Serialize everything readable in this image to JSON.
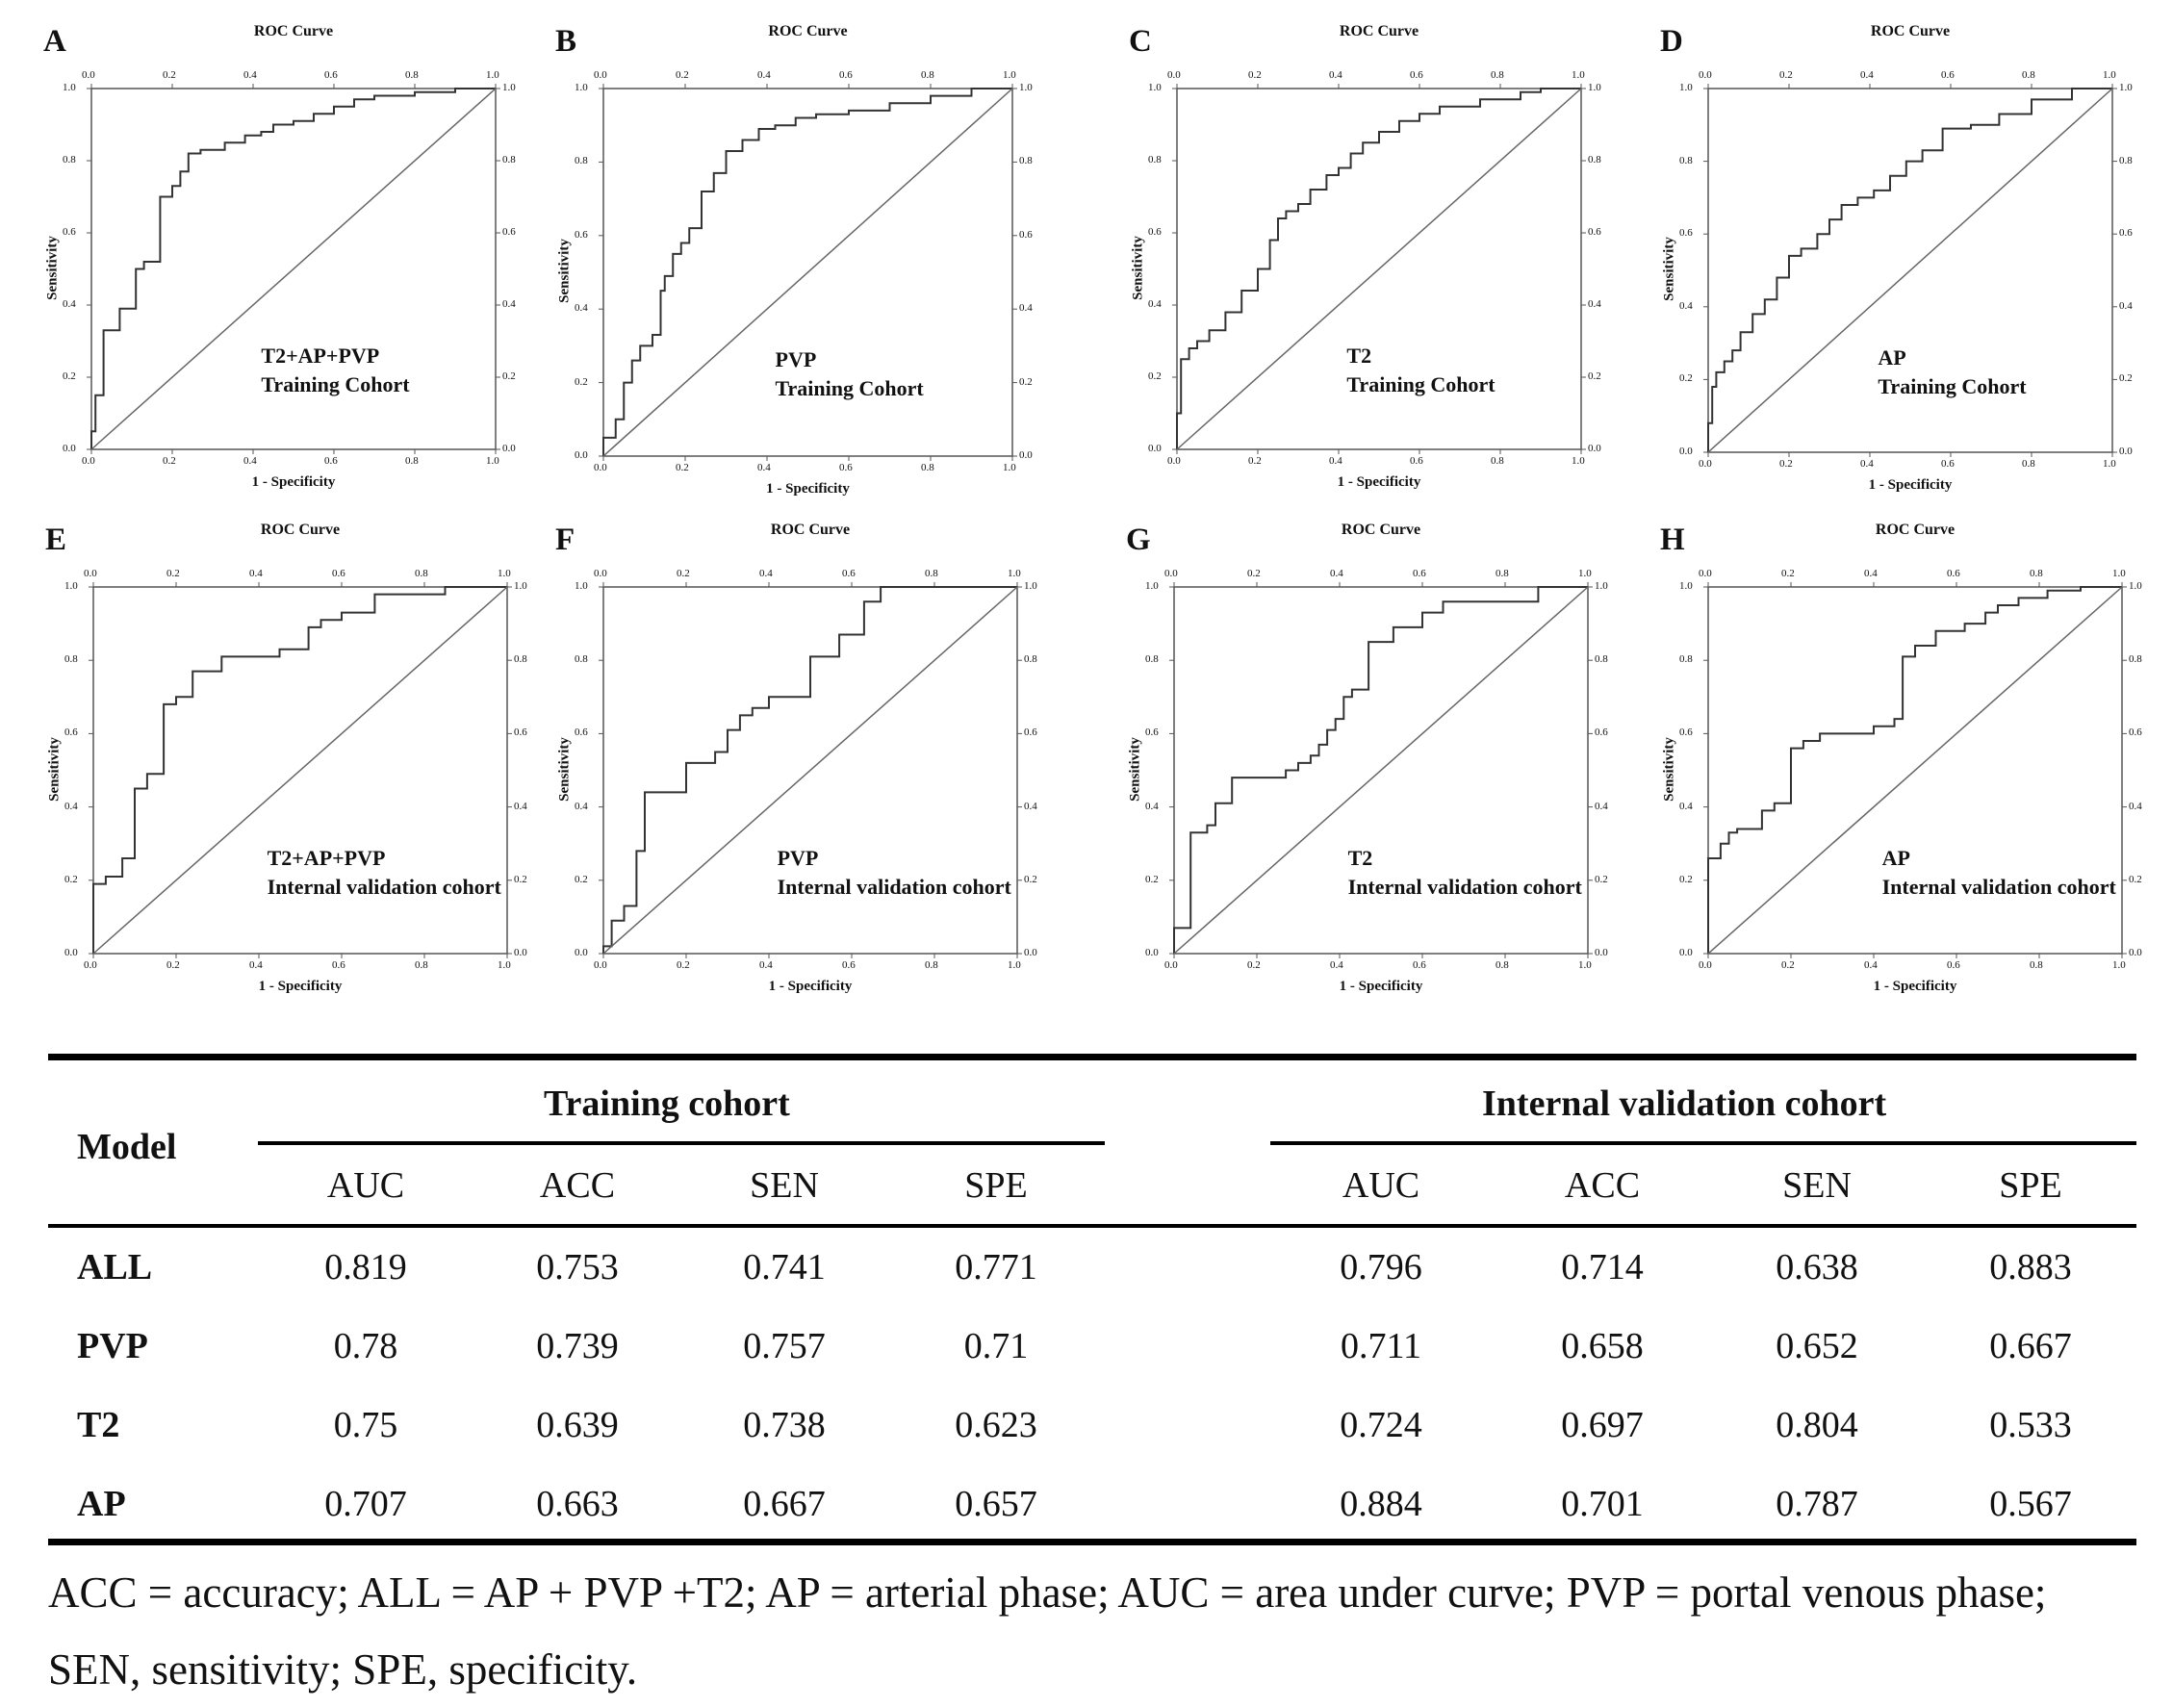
{
  "chart_data": [
    {
      "type": "line",
      "panel": "A",
      "title": "ROC Curve",
      "xlabel": "1 - Specificity",
      "ylabel": "Sensitivity",
      "xlim": [
        0,
        1
      ],
      "ylim": [
        0,
        1
      ],
      "ticks": [
        "0.0",
        "0.2",
        "0.4",
        "0.6",
        "0.8",
        "1.0"
      ],
      "annotation": [
        "T2+AP+PVP",
        "Training Cohort"
      ],
      "series": [
        {
          "curve": "roc",
          "x": [
            0,
            0,
            0.01,
            0.01,
            0.03,
            0.03,
            0.07,
            0.07,
            0.11,
            0.11,
            0.13,
            0.13,
            0.17,
            0.17,
            0.2,
            0.2,
            0.22,
            0.22,
            0.24,
            0.24,
            0.27,
            0.27,
            0.33,
            0.33,
            0.38,
            0.38,
            0.42,
            0.42,
            0.45,
            0.45,
            0.5,
            0.5,
            0.55,
            0.55,
            0.6,
            0.6,
            0.65,
            0.65,
            0.7,
            0.7,
            0.8,
            0.8,
            0.9,
            0.9,
            1
          ],
          "y": [
            0,
            0.05,
            0.05,
            0.15,
            0.15,
            0.33,
            0.33,
            0.39,
            0.39,
            0.5,
            0.5,
            0.52,
            0.52,
            0.7,
            0.7,
            0.73,
            0.73,
            0.77,
            0.77,
            0.82,
            0.82,
            0.83,
            0.83,
            0.85,
            0.85,
            0.87,
            0.87,
            0.88,
            0.88,
            0.9,
            0.9,
            0.91,
            0.91,
            0.93,
            0.93,
            0.95,
            0.95,
            0.97,
            0.97,
            0.98,
            0.98,
            0.99,
            0.99,
            1,
            1
          ]
        },
        {
          "curve": "reference",
          "x": [
            0,
            1
          ],
          "y": [
            0,
            1
          ]
        }
      ]
    },
    {
      "type": "line",
      "panel": "B",
      "title": "ROC Curve",
      "xlabel": "1 - Specificity",
      "ylabel": "Sensitivity",
      "xlim": [
        0,
        1
      ],
      "ylim": [
        0,
        1
      ],
      "ticks": [
        "0.0",
        "0.2",
        "0.4",
        "0.6",
        "0.8",
        "1.0"
      ],
      "annotation": [
        "PVP",
        "Training Cohort"
      ],
      "series": [
        {
          "curve": "roc",
          "x": [
            0,
            0,
            0.03,
            0.03,
            0.05,
            0.05,
            0.07,
            0.07,
            0.09,
            0.09,
            0.12,
            0.12,
            0.14,
            0.14,
            0.15,
            0.15,
            0.17,
            0.17,
            0.19,
            0.19,
            0.21,
            0.21,
            0.24,
            0.24,
            0.27,
            0.27,
            0.3,
            0.3,
            0.34,
            0.34,
            0.38,
            0.38,
            0.42,
            0.42,
            0.47,
            0.47,
            0.52,
            0.52,
            0.6,
            0.6,
            0.7,
            0.7,
            0.8,
            0.8,
            0.9,
            0.9,
            1
          ],
          "y": [
            0,
            0.05,
            0.05,
            0.1,
            0.1,
            0.2,
            0.2,
            0.26,
            0.26,
            0.3,
            0.3,
            0.33,
            0.33,
            0.45,
            0.45,
            0.49,
            0.49,
            0.55,
            0.55,
            0.58,
            0.58,
            0.62,
            0.62,
            0.72,
            0.72,
            0.77,
            0.77,
            0.83,
            0.83,
            0.86,
            0.86,
            0.89,
            0.89,
            0.9,
            0.9,
            0.92,
            0.92,
            0.93,
            0.93,
            0.94,
            0.94,
            0.96,
            0.96,
            0.98,
            0.98,
            1,
            1
          ]
        },
        {
          "curve": "reference",
          "x": [
            0,
            1
          ],
          "y": [
            0,
            1
          ]
        }
      ]
    },
    {
      "type": "line",
      "panel": "C",
      "title": "ROC Curve",
      "xlabel": "1 - Specificity",
      "ylabel": "Sensitivity",
      "xlim": [
        0,
        1
      ],
      "ylim": [
        0,
        1
      ],
      "ticks": [
        "0.0",
        "0.2",
        "0.4",
        "0.6",
        "0.8",
        "1.0"
      ],
      "annotation": [
        "T2",
        "Training Cohort"
      ],
      "series": [
        {
          "curve": "roc",
          "x": [
            0,
            0,
            0.01,
            0.01,
            0.03,
            0.03,
            0.05,
            0.05,
            0.08,
            0.08,
            0.12,
            0.12,
            0.16,
            0.16,
            0.2,
            0.2,
            0.23,
            0.23,
            0.25,
            0.25,
            0.27,
            0.27,
            0.3,
            0.3,
            0.33,
            0.33,
            0.37,
            0.37,
            0.4,
            0.4,
            0.43,
            0.43,
            0.46,
            0.46,
            0.5,
            0.5,
            0.55,
            0.55,
            0.6,
            0.6,
            0.65,
            0.65,
            0.75,
            0.75,
            0.85,
            0.85,
            0.9,
            0.9,
            1
          ],
          "y": [
            0,
            0.1,
            0.1,
            0.25,
            0.25,
            0.28,
            0.28,
            0.3,
            0.3,
            0.33,
            0.33,
            0.38,
            0.38,
            0.44,
            0.44,
            0.5,
            0.5,
            0.58,
            0.58,
            0.64,
            0.64,
            0.66,
            0.66,
            0.68,
            0.68,
            0.72,
            0.72,
            0.76,
            0.76,
            0.78,
            0.78,
            0.82,
            0.82,
            0.85,
            0.85,
            0.88,
            0.88,
            0.91,
            0.91,
            0.93,
            0.93,
            0.95,
            0.95,
            0.97,
            0.97,
            0.99,
            0.99,
            1,
            1
          ]
        },
        {
          "curve": "reference",
          "x": [
            0,
            1
          ],
          "y": [
            0,
            1
          ]
        }
      ]
    },
    {
      "type": "line",
      "panel": "D",
      "title": "ROC Curve",
      "xlabel": "1 - Specificity",
      "ylabel": "Sensitivity",
      "xlim": [
        0,
        1
      ],
      "ylim": [
        0,
        1
      ],
      "ticks": [
        "0.0",
        "0.2",
        "0.4",
        "0.6",
        "0.8",
        "1.0"
      ],
      "annotation": [
        "AP",
        "Training Cohort"
      ],
      "series": [
        {
          "curve": "roc",
          "x": [
            0,
            0,
            0.01,
            0.01,
            0.02,
            0.02,
            0.04,
            0.04,
            0.06,
            0.06,
            0.08,
            0.08,
            0.11,
            0.11,
            0.14,
            0.14,
            0.17,
            0.17,
            0.2,
            0.2,
            0.23,
            0.23,
            0.27,
            0.27,
            0.3,
            0.3,
            0.33,
            0.33,
            0.37,
            0.37,
            0.41,
            0.41,
            0.45,
            0.45,
            0.49,
            0.49,
            0.53,
            0.53,
            0.58,
            0.58,
            0.65,
            0.65,
            0.72,
            0.72,
            0.8,
            0.8,
            0.9,
            0.9,
            1
          ],
          "y": [
            0,
            0.08,
            0.08,
            0.18,
            0.18,
            0.22,
            0.22,
            0.25,
            0.25,
            0.28,
            0.28,
            0.33,
            0.33,
            0.38,
            0.38,
            0.42,
            0.42,
            0.48,
            0.48,
            0.54,
            0.54,
            0.56,
            0.56,
            0.6,
            0.6,
            0.64,
            0.64,
            0.68,
            0.68,
            0.7,
            0.7,
            0.72,
            0.72,
            0.76,
            0.76,
            0.8,
            0.8,
            0.83,
            0.83,
            0.89,
            0.89,
            0.9,
            0.9,
            0.93,
            0.93,
            0.97,
            0.97,
            1,
            1
          ]
        },
        {
          "curve": "reference",
          "x": [
            0,
            1
          ],
          "y": [
            0,
            1
          ]
        }
      ]
    },
    {
      "type": "line",
      "panel": "E",
      "title": "ROC Curve",
      "xlabel": "1 - Specificity",
      "ylabel": "Sensitivity",
      "xlim": [
        0,
        1
      ],
      "ylim": [
        0,
        1
      ],
      "ticks": [
        "0.0",
        "0.2",
        "0.4",
        "0.6",
        "0.8",
        "1.0"
      ],
      "annotation": [
        "T2+AP+PVP",
        "Internal validation cohort"
      ],
      "series": [
        {
          "curve": "roc",
          "x": [
            0,
            0,
            0.03,
            0.03,
            0.07,
            0.07,
            0.1,
            0.1,
            0.13,
            0.13,
            0.17,
            0.17,
            0.2,
            0.2,
            0.24,
            0.24,
            0.31,
            0.31,
            0.45,
            0.45,
            0.52,
            0.52,
            0.55,
            0.55,
            0.6,
            0.6,
            0.68,
            0.68,
            0.85,
            0.85,
            1
          ],
          "y": [
            0,
            0.19,
            0.19,
            0.21,
            0.21,
            0.26,
            0.26,
            0.45,
            0.45,
            0.49,
            0.49,
            0.68,
            0.68,
            0.7,
            0.7,
            0.77,
            0.77,
            0.81,
            0.81,
            0.83,
            0.83,
            0.89,
            0.89,
            0.91,
            0.91,
            0.93,
            0.93,
            0.98,
            0.98,
            1,
            1
          ]
        },
        {
          "curve": "reference",
          "x": [
            0,
            1
          ],
          "y": [
            0,
            1
          ]
        }
      ]
    },
    {
      "type": "line",
      "panel": "F",
      "title": "ROC Curve",
      "xlabel": "1 - Specificity",
      "ylabel": "Sensitivity",
      "xlim": [
        0,
        1
      ],
      "ylim": [
        0,
        1
      ],
      "ticks": [
        "0.0",
        "0.2",
        "0.4",
        "0.6",
        "0.8",
        "1.0"
      ],
      "annotation": [
        "PVP",
        "Internal validation cohort"
      ],
      "series": [
        {
          "curve": "roc",
          "x": [
            0,
            0,
            0.02,
            0.02,
            0.05,
            0.05,
            0.08,
            0.08,
            0.1,
            0.1,
            0.13,
            0.13,
            0.2,
            0.2,
            0.27,
            0.27,
            0.3,
            0.3,
            0.33,
            0.33,
            0.36,
            0.36,
            0.4,
            0.4,
            0.5,
            0.5,
            0.57,
            0.57,
            0.63,
            0.63,
            0.67,
            0.67,
            1
          ],
          "y": [
            0,
            0.02,
            0.02,
            0.09,
            0.09,
            0.13,
            0.13,
            0.28,
            0.28,
            0.44,
            0.44,
            0.44,
            0.44,
            0.52,
            0.52,
            0.55,
            0.55,
            0.61,
            0.61,
            0.65,
            0.65,
            0.67,
            0.67,
            0.7,
            0.7,
            0.81,
            0.81,
            0.87,
            0.87,
            0.96,
            0.96,
            1,
            1
          ]
        },
        {
          "curve": "reference",
          "x": [
            0,
            1
          ],
          "y": [
            0,
            1
          ]
        }
      ]
    },
    {
      "type": "line",
      "panel": "G",
      "title": "ROC Curve",
      "xlabel": "1 - Specificity",
      "ylabel": "Sensitivity",
      "xlim": [
        0,
        1
      ],
      "ylim": [
        0,
        1
      ],
      "ticks": [
        "0.0",
        "0.2",
        "0.4",
        "0.6",
        "0.8",
        "1.0"
      ],
      "annotation": [
        "T2",
        "Internal validation cohort"
      ],
      "series": [
        {
          "curve": "roc",
          "x": [
            0,
            0,
            0.04,
            0.04,
            0.08,
            0.08,
            0.1,
            0.1,
            0.14,
            0.14,
            0.27,
            0.27,
            0.3,
            0.3,
            0.33,
            0.33,
            0.35,
            0.35,
            0.37,
            0.37,
            0.39,
            0.39,
            0.41,
            0.41,
            0.43,
            0.43,
            0.47,
            0.47,
            0.53,
            0.53,
            0.6,
            0.6,
            0.65,
            0.65,
            0.88,
            0.88,
            1
          ],
          "y": [
            0,
            0.07,
            0.07,
            0.33,
            0.33,
            0.35,
            0.35,
            0.41,
            0.41,
            0.48,
            0.48,
            0.5,
            0.5,
            0.52,
            0.52,
            0.54,
            0.54,
            0.57,
            0.57,
            0.61,
            0.61,
            0.64,
            0.64,
            0.7,
            0.7,
            0.72,
            0.72,
            0.85,
            0.85,
            0.89,
            0.89,
            0.93,
            0.93,
            0.96,
            0.96,
            1,
            1
          ]
        },
        {
          "curve": "reference",
          "x": [
            0,
            1
          ],
          "y": [
            0,
            1
          ]
        }
      ]
    },
    {
      "type": "line",
      "panel": "H",
      "title": "ROC Curve",
      "xlabel": "1 - Specificity",
      "ylabel": "Sensitivity",
      "xlim": [
        0,
        1
      ],
      "ylim": [
        0,
        1
      ],
      "ticks": [
        "0.0",
        "0.2",
        "0.4",
        "0.6",
        "0.8",
        "1.0"
      ],
      "annotation": [
        "AP",
        "Internal validation cohort"
      ],
      "series": [
        {
          "curve": "roc",
          "x": [
            0,
            0,
            0.03,
            0.03,
            0.05,
            0.05,
            0.07,
            0.07,
            0.13,
            0.13,
            0.16,
            0.16,
            0.2,
            0.2,
            0.23,
            0.23,
            0.27,
            0.27,
            0.4,
            0.4,
            0.45,
            0.45,
            0.47,
            0.47,
            0.5,
            0.5,
            0.55,
            0.55,
            0.62,
            0.62,
            0.67,
            0.67,
            0.7,
            0.7,
            0.75,
            0.75,
            0.82,
            0.82,
            0.9,
            0.9,
            1
          ],
          "y": [
            0,
            0.26,
            0.26,
            0.3,
            0.3,
            0.33,
            0.33,
            0.34,
            0.34,
            0.39,
            0.39,
            0.41,
            0.41,
            0.56,
            0.56,
            0.58,
            0.58,
            0.6,
            0.6,
            0.62,
            0.62,
            0.64,
            0.64,
            0.81,
            0.81,
            0.84,
            0.84,
            0.88,
            0.88,
            0.9,
            0.9,
            0.93,
            0.93,
            0.95,
            0.95,
            0.97,
            0.97,
            0.99,
            0.99,
            1,
            1
          ]
        },
        {
          "curve": "reference",
          "x": [
            0,
            1
          ],
          "y": [
            0,
            1
          ]
        }
      ]
    },
    {
      "type": "table",
      "columns": {
        "model": "Model",
        "groups": [
          "Training cohort",
          "Internal validation cohort"
        ],
        "metrics": [
          "AUC",
          "ACC",
          "SEN",
          "SPE"
        ]
      },
      "rows": [
        {
          "model": "ALL",
          "training": [
            "0.819",
            "0.753",
            "0.741",
            "0.771"
          ],
          "validation": [
            "0.796",
            "0.714",
            "0.638",
            "0.883"
          ]
        },
        {
          "model": "PVP",
          "training": [
            "0.78",
            "0.739",
            "0.757",
            "0.71"
          ],
          "validation": [
            "0.711",
            "0.658",
            "0.652",
            "0.667"
          ]
        },
        {
          "model": "T2",
          "training": [
            "0.75",
            "0.639",
            "0.738",
            "0.623"
          ],
          "validation": [
            "0.724",
            "0.697",
            "0.804",
            "0.533"
          ]
        },
        {
          "model": "AP",
          "training": [
            "0.707",
            "0.663",
            "0.667",
            "0.657"
          ],
          "validation": [
            "0.884",
            "0.701",
            "0.787",
            "0.567"
          ]
        }
      ],
      "footnote": "ACC = accuracy; ALL = AP + PVP +T2; AP = arterial phase; AUC = area under curve; PVP = portal venous phase; SEN, sensitivity; SPE, specificity."
    }
  ]
}
